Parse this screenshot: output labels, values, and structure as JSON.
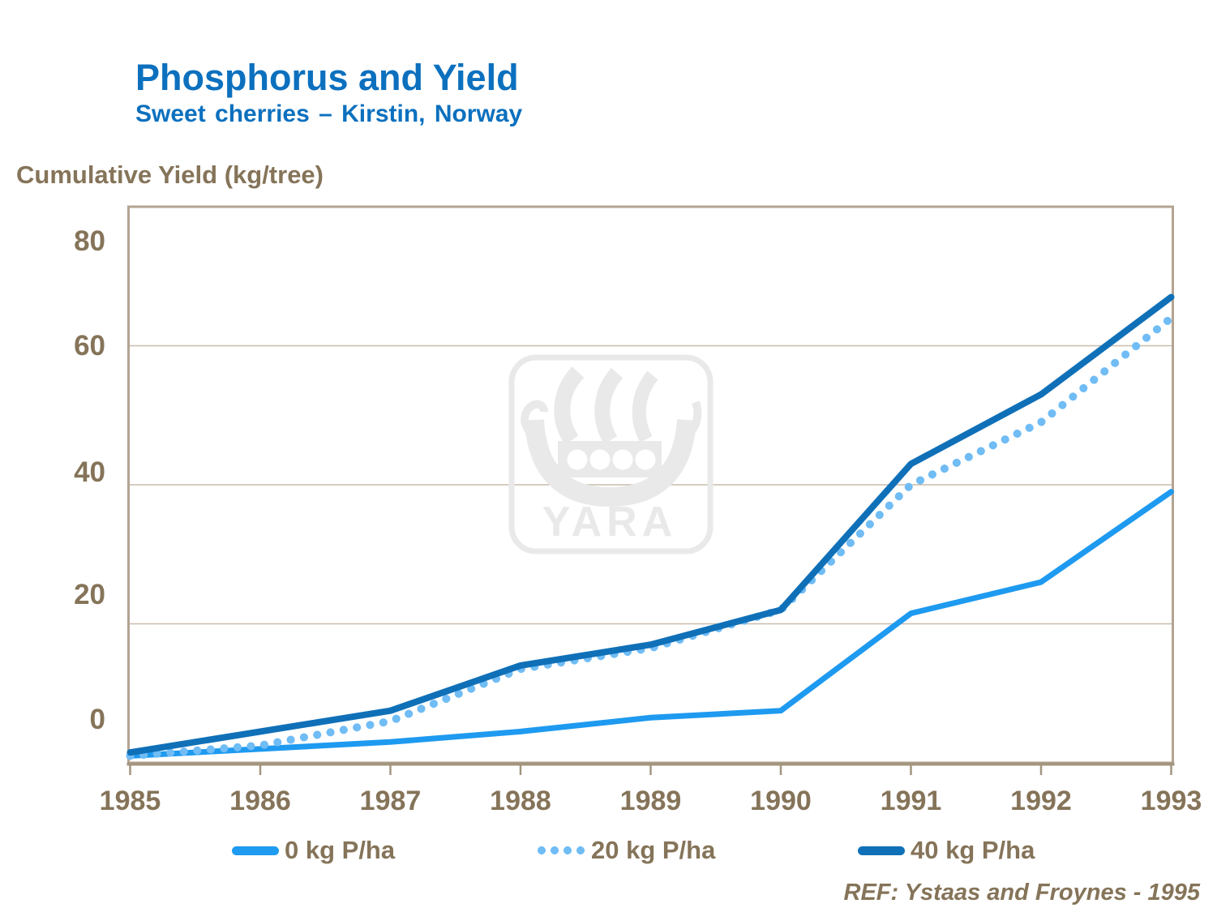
{
  "header": {
    "title": "Phosphorus and Yield",
    "subtitle": "Sweet cherries – Kirstin, Norway"
  },
  "watermark": {
    "brand": "YARA"
  },
  "footer": {
    "reference": "REF: Ystaas and Froynes - 1995"
  },
  "colors": {
    "title_blue": "#0C70BE",
    "text_brown": "#857459",
    "plot_border": "#B3A492",
    "axis_line": "#A3957F",
    "gridline": "#C8BCAC",
    "series_0kg_blue": "#1E9AF0",
    "series_20kg_blue": "#70BCF5",
    "series_40kg_blue": "#0F70B8",
    "watermark_gray": "#E9E9E9"
  },
  "chart_data": {
    "type": "line",
    "title": "Phosphorus and Yield",
    "subtitle": "Sweet cherries – Kirstin, Norway",
    "ylabel": "Cumulative Yield (kg/tree)",
    "xlabel": "",
    "x": [
      1985,
      1986,
      1987,
      1988,
      1989,
      1990,
      1991,
      1992,
      1993
    ],
    "ylim": [
      0,
      80
    ],
    "y_ticks": [
      0,
      20,
      40,
      60,
      80
    ],
    "grid": "horizontal",
    "legend_position": "bottom",
    "series": [
      {
        "name": "0 kg P/ha",
        "style": "solid",
        "color": "#1E9AF0",
        "values": [
          1,
          2,
          3,
          4.5,
          6.5,
          7.5,
          21.5,
          26,
          39
        ]
      },
      {
        "name": "20 kg P/ha",
        "style": "dotted",
        "color": "#70BCF5",
        "values": [
          1,
          2.5,
          6,
          13.5,
          16.5,
          22,
          40,
          49,
          64
        ]
      },
      {
        "name": "40 kg P/ha",
        "style": "solid",
        "color": "#0F70B8",
        "values": [
          1.5,
          4.5,
          7.5,
          14,
          17,
          22,
          43,
          53,
          67
        ]
      }
    ],
    "reference": "REF: Ystaas and Froynes - 1995"
  }
}
